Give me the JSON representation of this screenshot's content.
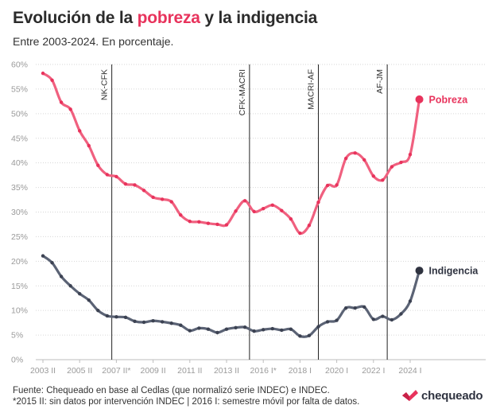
{
  "header": {
    "title_part1": "Evolución de la ",
    "title_highlight": "pobreza",
    "title_part2": " y la indigencia",
    "subtitle": "Entre 2003-2024. En porcentaje."
  },
  "footer": {
    "source_line1": "Fuente: Chequeado en base al Cedlas (que normalizó serie INDEC) e INDEC.",
    "source_line2": "*2015 II: sin datos por intervención INDEC | 2016 I: semestre móvil por falta de datos.",
    "logo_text": "chequeado"
  },
  "colors": {
    "pobreza": "#f0607f",
    "pobreza_end": "#e8335c",
    "indigencia": "#5b6375",
    "indigencia_end": "#2f3340",
    "grid": "#d6d6d6",
    "axis_text": "#9a9a9a"
  },
  "chart_data": {
    "type": "line",
    "ylim": [
      0,
      60
    ],
    "y_ticks": [
      0,
      5,
      10,
      15,
      20,
      25,
      30,
      35,
      40,
      45,
      50,
      55,
      60
    ],
    "y_tick_labels": [
      "0%",
      "5%",
      "10%",
      "15%",
      "20%",
      "25%",
      "30%",
      "35%",
      "40%",
      "45%",
      "50%",
      "55%",
      "60%"
    ],
    "x_ticks": [
      "2003 II",
      "2005 II",
      "2007 II*",
      "2009 II",
      "2011 II",
      "2013 II",
      "2016 I*",
      "2018 I",
      "2020 I",
      "2022 I",
      "2024 I"
    ],
    "x_tick_index": [
      0,
      4,
      8,
      12,
      16,
      20,
      24,
      28,
      32,
      36,
      40
    ],
    "grid": true,
    "series": [
      {
        "name": "Pobreza",
        "values": [
          58.2,
          56.8,
          52.3,
          50.9,
          46.5,
          43.5,
          39.5,
          37.6,
          37.2,
          35.7,
          35.5,
          34.4,
          33.0,
          32.6,
          32.1,
          29.4,
          28.1,
          28.0,
          27.7,
          27.5,
          27.4,
          30.2,
          32.3,
          30.1,
          30.7,
          31.4,
          30.3,
          28.6,
          25.7,
          27.3,
          32.0,
          35.4,
          35.5,
          40.9,
          42.0,
          40.6,
          37.3,
          36.5,
          39.2,
          40.1,
          41.7,
          52.9
        ]
      },
      {
        "name": "Indigencia",
        "values": [
          21.1,
          19.7,
          16.9,
          15.0,
          13.4,
          12.1,
          10.0,
          8.9,
          8.7,
          8.6,
          7.8,
          7.6,
          7.9,
          7.7,
          7.4,
          7.0,
          5.9,
          6.4,
          6.2,
          5.5,
          6.2,
          6.5,
          6.6,
          5.8,
          6.1,
          6.3,
          6.0,
          6.2,
          4.8,
          4.9,
          6.7,
          7.7,
          8.0,
          10.5,
          10.5,
          10.7,
          8.2,
          8.8,
          8.1,
          9.3,
          11.9,
          18.1
        ]
      }
    ],
    "vlines": [
      {
        "label": "NK-CFK",
        "index": 7.5
      },
      {
        "label": "CFK-MACRI",
        "index": 22.5
      },
      {
        "label": "MACRI-AF",
        "index": 30.0
      },
      {
        "label": "AF-JM",
        "index": 37.5
      }
    ],
    "end_labels": [
      "Pobreza",
      "Indigencia"
    ]
  }
}
